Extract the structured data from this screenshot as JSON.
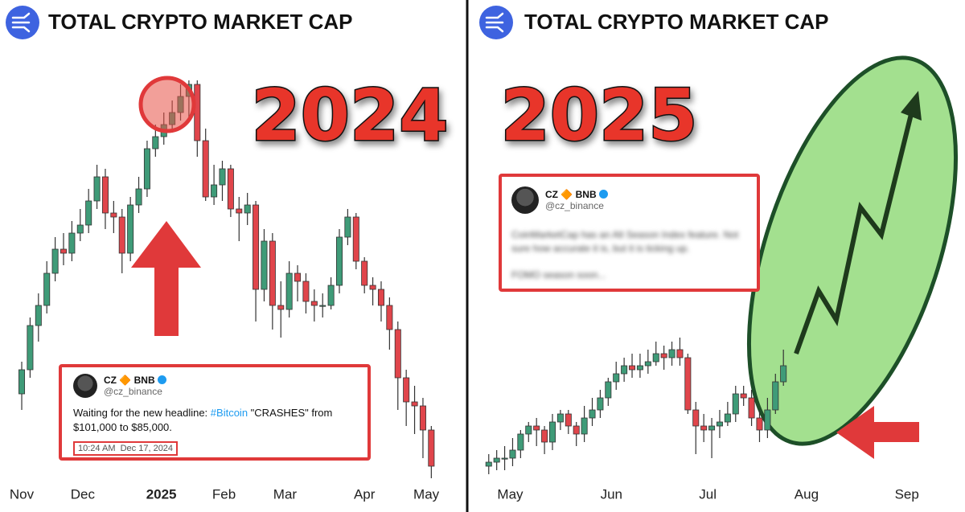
{
  "chart_data": [
    {
      "type": "candlestick",
      "title": "TOTAL CRYPTO MARKET CAP",
      "annotation": "2024",
      "open": [
        22,
        28,
        39,
        44,
        52,
        58,
        57,
        62,
        64,
        70,
        76,
        67,
        66,
        57,
        69,
        73,
        83,
        86,
        89,
        92,
        96,
        99,
        85,
        71,
        74,
        78,
        68,
        67,
        69,
        48,
        60,
        44,
        43,
        52,
        50,
        45,
        44,
        44,
        49,
        61,
        66,
        55,
        49,
        48,
        44,
        38,
        26,
        20,
        19,
        13
      ],
      "high": [
        30,
        41,
        47,
        55,
        61,
        62,
        65,
        68,
        73,
        79,
        78,
        70,
        68,
        71,
        76,
        85,
        89,
        92,
        95,
        99,
        100,
        100,
        88,
        79,
        80,
        79,
        71,
        72,
        70,
        63,
        62,
        50,
        55,
        54,
        52,
        48,
        47,
        51,
        63,
        68,
        67,
        56,
        51,
        50,
        46,
        40,
        28,
        24,
        21,
        14
      ],
      "low": [
        18,
        26,
        35,
        42,
        50,
        54,
        55,
        60,
        62,
        68,
        63,
        62,
        52,
        55,
        67,
        71,
        81,
        84,
        87,
        90,
        90,
        81,
        70,
        69,
        70,
        66,
        60,
        64,
        40,
        45,
        38,
        36,
        41,
        45,
        42,
        40,
        41,
        43,
        47,
        59,
        53,
        47,
        44,
        40,
        33,
        18,
        14,
        12,
        6,
        1
      ],
      "close": [
        28,
        39,
        44,
        52,
        58,
        57,
        62,
        64,
        70,
        76,
        67,
        66,
        57,
        69,
        73,
        83,
        86,
        89,
        92,
        96,
        99,
        85,
        71,
        74,
        78,
        68,
        67,
        69,
        48,
        60,
        44,
        43,
        52,
        50,
        45,
        44,
        44,
        49,
        61,
        66,
        55,
        49,
        48,
        44,
        38,
        26,
        20,
        19,
        13,
        4
      ],
      "up_color": "#3f9b78",
      "down_color": "#e0454b",
      "xlim": [
        -2.6,
        53.2
      ],
      "ylim": [
        0,
        100
      ],
      "xticks": [
        {
          "value": 0,
          "label": "Nov"
        },
        {
          "value": 7.3,
          "label": "Dec"
        },
        {
          "value": 16.7,
          "label": "2025"
        },
        {
          "value": 24.2,
          "label": "Feb"
        },
        {
          "value": 31.5,
          "label": "Mar"
        },
        {
          "value": 41,
          "label": "Apr"
        },
        {
          "value": 48.4,
          "label": "May"
        }
      ]
    },
    {
      "type": "candlestick",
      "title": "TOTAL CRYPTO MARKET CAP",
      "annotation": "2025",
      "open": [
        4,
        5,
        6,
        6,
        8,
        12,
        14,
        13,
        10,
        15,
        17,
        14,
        12,
        16,
        18,
        21,
        25,
        27,
        29,
        28,
        29,
        30,
        32,
        31,
        33,
        31,
        18,
        14,
        13,
        14,
        15,
        17,
        22,
        21,
        16,
        13,
        18,
        25
      ],
      "high": [
        7,
        8,
        9,
        11,
        13,
        15,
        16,
        14,
        17,
        18,
        18,
        15,
        19,
        21,
        23,
        26,
        30,
        31,
        32,
        32,
        33,
        35,
        34,
        35,
        36,
        32,
        20,
        17,
        16,
        18,
        20,
        24,
        24,
        23,
        18,
        21,
        27,
        33
      ],
      "low": [
        2,
        3,
        3,
        4,
        6,
        10,
        9,
        7,
        8,
        13,
        12,
        9,
        10,
        14,
        16,
        19,
        23,
        25,
        26,
        26,
        27,
        29,
        28,
        29,
        29,
        17,
        7,
        10,
        6,
        11,
        14,
        15,
        19,
        14,
        10,
        11,
        17,
        24
      ],
      "close": [
        5,
        6,
        6,
        8,
        12,
        14,
        13,
        10,
        15,
        17,
        14,
        12,
        16,
        18,
        21,
        25,
        27,
        29,
        28,
        29,
        30,
        32,
        31,
        33,
        31,
        18,
        14,
        13,
        14,
        15,
        17,
        22,
        21,
        16,
        13,
        18,
        25,
        29
      ],
      "up_color": "#3f9b78",
      "down_color": "#e0454b",
      "xlim": [
        -2.5,
        59.8
      ],
      "ylim": [
        0,
        100
      ],
      "xticks": [
        {
          "value": 2.7,
          "label": "May"
        },
        {
          "value": 15.4,
          "label": "Jun"
        },
        {
          "value": 27.5,
          "label": "Jul"
        },
        {
          "value": 39.9,
          "label": "Aug"
        },
        {
          "value": 52.5,
          "label": "Sep"
        }
      ]
    }
  ],
  "tweets": [
    {
      "name": "CZ 🔶 BNB",
      "handle": "@cz_binance",
      "text": [
        "Waiting for the new headline:",
        "#Bitcoin",
        "\"CRASHES\" from $101,000 to $85,000."
      ],
      "time": "10:24 AM",
      "date": "Dec 17, 2024"
    },
    {
      "name": "CZ 🔶 BNB",
      "handle": "@cz_binance",
      "lines": [
        "CoinMarketCap has an Alt Season Index feature. Not sure how accurate it is, but it is ticking up.",
        "FOMO season soon..."
      ]
    }
  ]
}
